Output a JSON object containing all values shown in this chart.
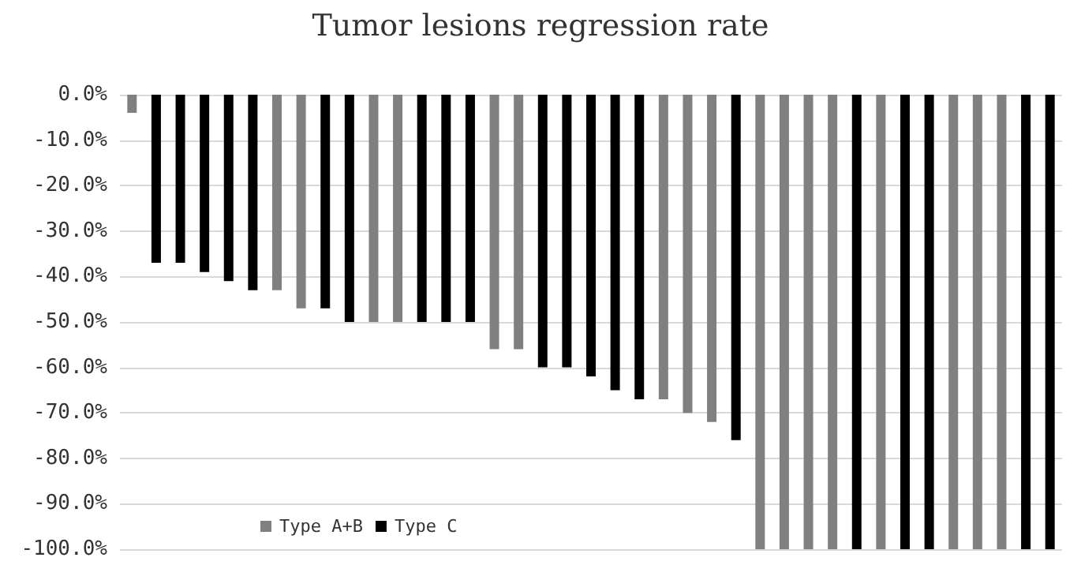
{
  "chart_data": {
    "type": "bar",
    "title": "Tumor lesions regression rate",
    "categories": [
      null,
      null,
      null,
      null,
      null,
      null,
      null,
      null,
      null,
      null,
      null,
      null,
      null,
      null,
      null,
      null,
      null,
      null,
      null,
      null,
      null,
      null,
      null,
      null,
      null,
      null,
      null,
      null,
      null,
      null,
      null,
      null,
      null,
      null,
      null,
      null,
      null,
      null,
      null
    ],
    "series": [
      {
        "name": "Type A+B",
        "color": "#808080",
        "values": [
          -4,
          null,
          null,
          null,
          null,
          null,
          -43,
          -47,
          null,
          null,
          -50,
          -50,
          null,
          null,
          null,
          -56,
          -56,
          null,
          null,
          null,
          null,
          null,
          -67,
          -70,
          -72,
          null,
          -100,
          -100,
          -100,
          -100,
          null,
          -100,
          null,
          null,
          -100,
          -100,
          -100,
          null,
          null
        ]
      },
      {
        "name": "Type C",
        "color": "#000000",
        "values": [
          null,
          -37,
          -37,
          -39,
          -41,
          -43,
          null,
          null,
          -47,
          -50,
          null,
          null,
          -50,
          -50,
          -50,
          null,
          null,
          -60,
          -60,
          -62,
          -65,
          -67,
          null,
          null,
          null,
          -76,
          null,
          null,
          null,
          null,
          -100,
          null,
          -100,
          -100,
          null,
          null,
          null,
          -100,
          -100
        ]
      }
    ],
    "ylim": [
      -100,
      0
    ],
    "yticks": [
      {
        "value": 0,
        "label": "0.0%"
      },
      {
        "value": -10,
        "label": "-10.0%"
      },
      {
        "value": -20,
        "label": "-20.0%"
      },
      {
        "value": -30,
        "label": "-30.0%"
      },
      {
        "value": -40,
        "label": "-40.0%"
      },
      {
        "value": -50,
        "label": "-50.0%"
      },
      {
        "value": -60,
        "label": "-60.0%"
      },
      {
        "value": -70,
        "label": "-70.0%"
      },
      {
        "value": -80,
        "label": "-80.0%"
      },
      {
        "value": -90,
        "label": "-90.0%"
      },
      {
        "value": -100,
        "label": "-100.0%"
      }
    ],
    "grid": "y",
    "legend": "bottom left"
  }
}
